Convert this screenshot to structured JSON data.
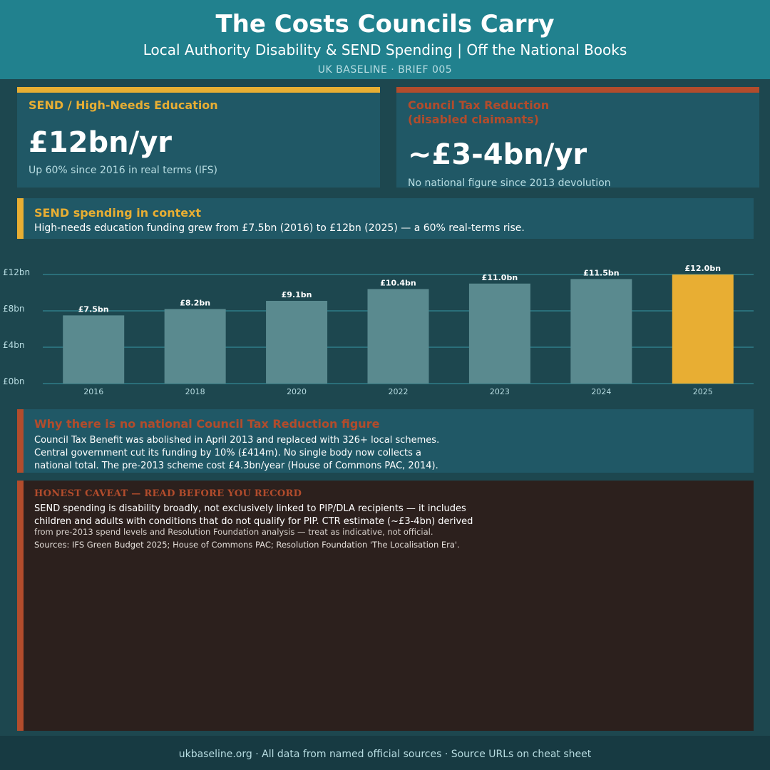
{
  "header": {
    "title": "The Costs Councils Carry",
    "subtitle": "Local Authority Disability & SEND Spending  |  Off the National Books",
    "kicker": "UK BASELINE  ·  BRIEF 005"
  },
  "cards": {
    "left": {
      "label": "SEND / High-Needs Education",
      "value": "£12bn/yr",
      "note": "Up 60% since 2016 in real terms (IFS)"
    },
    "right": {
      "label": "Council Tax Reduction\n(disabled claimants)",
      "value": "~£3-4bn/yr",
      "note": "No national figure since 2013 devolution"
    }
  },
  "context": {
    "title": "SEND spending in context",
    "text": "High-needs education funding grew from £7.5bn (2016) to £12bn (2025) — a 60% real-terms rise."
  },
  "chart_data": {
    "type": "bar",
    "categories": [
      "2016",
      "2018",
      "2020",
      "2022",
      "2023",
      "2024",
      "2025"
    ],
    "values": [
      7.5,
      8.2,
      9.1,
      10.4,
      11.0,
      11.5,
      12.0
    ],
    "data_labels": [
      "£7.5bn",
      "£8.2bn",
      "£9.1bn",
      "£10.4bn",
      "£11.0bn",
      "£11.5bn",
      "£12.0bn"
    ],
    "yticks": [
      0,
      4,
      8,
      12
    ],
    "ytick_labels": [
      "£0bn",
      "£4bn",
      "£8bn",
      "£12bn"
    ],
    "ylim": [
      0,
      12
    ],
    "grid": true,
    "bar_color": "#5a8a8f",
    "highlight_index": 6,
    "highlight_color": "#e8ae33",
    "title": "",
    "xlabel": "",
    "ylabel": ""
  },
  "why": {
    "title": "Why there is no national Council Tax Reduction figure",
    "text": "Council Tax Benefit was abolished in April 2013 and replaced with 326+ local schemes.\nCentral government cut its funding by 10% (£414m). No single body now collects a\nnational total. The pre-2013 scheme cost £4.3bn/year (House of Commons PAC, 2014)."
  },
  "caveat": {
    "title": "HONEST CAVEAT — READ BEFORE YOU RECORD",
    "text": "SEND spending is disability broadly, not exclusively linked to PIP/DLA recipients — it includes\nchildren and adults with conditions that do not qualify for PIP. CTR estimate (~£3-4bn) derived",
    "small": "from pre-2013 spend levels and Resolution Foundation analysis — treat as indicative, not official.",
    "sources": "Sources: IFS Green Budget 2025; House of Commons PAC; Resolution Foundation 'The Localisation Era'."
  },
  "footer": {
    "text": "ukbaseline.org  ·  All data from named official sources  ·  Source URLs on cheat sheet"
  },
  "colors": {
    "gold": "#e8ae33",
    "rust": "#b24c2c",
    "teal_header": "#21818e"
  }
}
